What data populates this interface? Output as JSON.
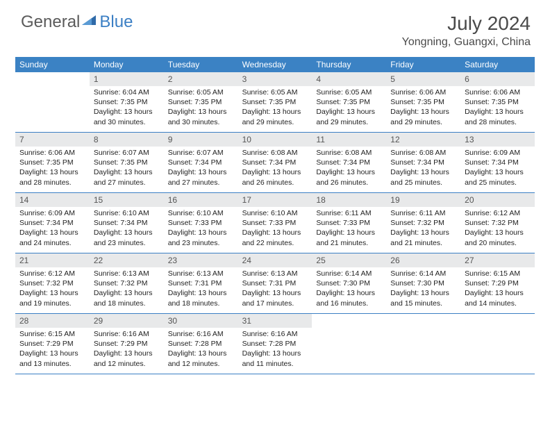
{
  "logo": {
    "text1": "General",
    "text2": "Blue"
  },
  "title": "July 2024",
  "location": "Yongning, Guangxi, China",
  "colors": {
    "header_bg": "#3b82c4",
    "daynum_bg": "#e8e9ea",
    "border": "#3b7fc4"
  },
  "weekdays": [
    "Sunday",
    "Monday",
    "Tuesday",
    "Wednesday",
    "Thursday",
    "Friday",
    "Saturday"
  ],
  "weeks": [
    [
      {
        "n": "",
        "sr": "",
        "ss": "",
        "dl": ""
      },
      {
        "n": "1",
        "sr": "Sunrise: 6:04 AM",
        "ss": "Sunset: 7:35 PM",
        "dl": "Daylight: 13 hours and 30 minutes."
      },
      {
        "n": "2",
        "sr": "Sunrise: 6:05 AM",
        "ss": "Sunset: 7:35 PM",
        "dl": "Daylight: 13 hours and 30 minutes."
      },
      {
        "n": "3",
        "sr": "Sunrise: 6:05 AM",
        "ss": "Sunset: 7:35 PM",
        "dl": "Daylight: 13 hours and 29 minutes."
      },
      {
        "n": "4",
        "sr": "Sunrise: 6:05 AM",
        "ss": "Sunset: 7:35 PM",
        "dl": "Daylight: 13 hours and 29 minutes."
      },
      {
        "n": "5",
        "sr": "Sunrise: 6:06 AM",
        "ss": "Sunset: 7:35 PM",
        "dl": "Daylight: 13 hours and 29 minutes."
      },
      {
        "n": "6",
        "sr": "Sunrise: 6:06 AM",
        "ss": "Sunset: 7:35 PM",
        "dl": "Daylight: 13 hours and 28 minutes."
      }
    ],
    [
      {
        "n": "7",
        "sr": "Sunrise: 6:06 AM",
        "ss": "Sunset: 7:35 PM",
        "dl": "Daylight: 13 hours and 28 minutes."
      },
      {
        "n": "8",
        "sr": "Sunrise: 6:07 AM",
        "ss": "Sunset: 7:35 PM",
        "dl": "Daylight: 13 hours and 27 minutes."
      },
      {
        "n": "9",
        "sr": "Sunrise: 6:07 AM",
        "ss": "Sunset: 7:34 PM",
        "dl": "Daylight: 13 hours and 27 minutes."
      },
      {
        "n": "10",
        "sr": "Sunrise: 6:08 AM",
        "ss": "Sunset: 7:34 PM",
        "dl": "Daylight: 13 hours and 26 minutes."
      },
      {
        "n": "11",
        "sr": "Sunrise: 6:08 AM",
        "ss": "Sunset: 7:34 PM",
        "dl": "Daylight: 13 hours and 26 minutes."
      },
      {
        "n": "12",
        "sr": "Sunrise: 6:08 AM",
        "ss": "Sunset: 7:34 PM",
        "dl": "Daylight: 13 hours and 25 minutes."
      },
      {
        "n": "13",
        "sr": "Sunrise: 6:09 AM",
        "ss": "Sunset: 7:34 PM",
        "dl": "Daylight: 13 hours and 25 minutes."
      }
    ],
    [
      {
        "n": "14",
        "sr": "Sunrise: 6:09 AM",
        "ss": "Sunset: 7:34 PM",
        "dl": "Daylight: 13 hours and 24 minutes."
      },
      {
        "n": "15",
        "sr": "Sunrise: 6:10 AM",
        "ss": "Sunset: 7:34 PM",
        "dl": "Daylight: 13 hours and 23 minutes."
      },
      {
        "n": "16",
        "sr": "Sunrise: 6:10 AM",
        "ss": "Sunset: 7:33 PM",
        "dl": "Daylight: 13 hours and 23 minutes."
      },
      {
        "n": "17",
        "sr": "Sunrise: 6:10 AM",
        "ss": "Sunset: 7:33 PM",
        "dl": "Daylight: 13 hours and 22 minutes."
      },
      {
        "n": "18",
        "sr": "Sunrise: 6:11 AM",
        "ss": "Sunset: 7:33 PM",
        "dl": "Daylight: 13 hours and 21 minutes."
      },
      {
        "n": "19",
        "sr": "Sunrise: 6:11 AM",
        "ss": "Sunset: 7:32 PM",
        "dl": "Daylight: 13 hours and 21 minutes."
      },
      {
        "n": "20",
        "sr": "Sunrise: 6:12 AM",
        "ss": "Sunset: 7:32 PM",
        "dl": "Daylight: 13 hours and 20 minutes."
      }
    ],
    [
      {
        "n": "21",
        "sr": "Sunrise: 6:12 AM",
        "ss": "Sunset: 7:32 PM",
        "dl": "Daylight: 13 hours and 19 minutes."
      },
      {
        "n": "22",
        "sr": "Sunrise: 6:13 AM",
        "ss": "Sunset: 7:32 PM",
        "dl": "Daylight: 13 hours and 18 minutes."
      },
      {
        "n": "23",
        "sr": "Sunrise: 6:13 AM",
        "ss": "Sunset: 7:31 PM",
        "dl": "Daylight: 13 hours and 18 minutes."
      },
      {
        "n": "24",
        "sr": "Sunrise: 6:13 AM",
        "ss": "Sunset: 7:31 PM",
        "dl": "Daylight: 13 hours and 17 minutes."
      },
      {
        "n": "25",
        "sr": "Sunrise: 6:14 AM",
        "ss": "Sunset: 7:30 PM",
        "dl": "Daylight: 13 hours and 16 minutes."
      },
      {
        "n": "26",
        "sr": "Sunrise: 6:14 AM",
        "ss": "Sunset: 7:30 PM",
        "dl": "Daylight: 13 hours and 15 minutes."
      },
      {
        "n": "27",
        "sr": "Sunrise: 6:15 AM",
        "ss": "Sunset: 7:29 PM",
        "dl": "Daylight: 13 hours and 14 minutes."
      }
    ],
    [
      {
        "n": "28",
        "sr": "Sunrise: 6:15 AM",
        "ss": "Sunset: 7:29 PM",
        "dl": "Daylight: 13 hours and 13 minutes."
      },
      {
        "n": "29",
        "sr": "Sunrise: 6:16 AM",
        "ss": "Sunset: 7:29 PM",
        "dl": "Daylight: 13 hours and 12 minutes."
      },
      {
        "n": "30",
        "sr": "Sunrise: 6:16 AM",
        "ss": "Sunset: 7:28 PM",
        "dl": "Daylight: 13 hours and 12 minutes."
      },
      {
        "n": "31",
        "sr": "Sunrise: 6:16 AM",
        "ss": "Sunset: 7:28 PM",
        "dl": "Daylight: 13 hours and 11 minutes."
      },
      {
        "n": "",
        "sr": "",
        "ss": "",
        "dl": ""
      },
      {
        "n": "",
        "sr": "",
        "ss": "",
        "dl": ""
      },
      {
        "n": "",
        "sr": "",
        "ss": "",
        "dl": ""
      }
    ]
  ]
}
